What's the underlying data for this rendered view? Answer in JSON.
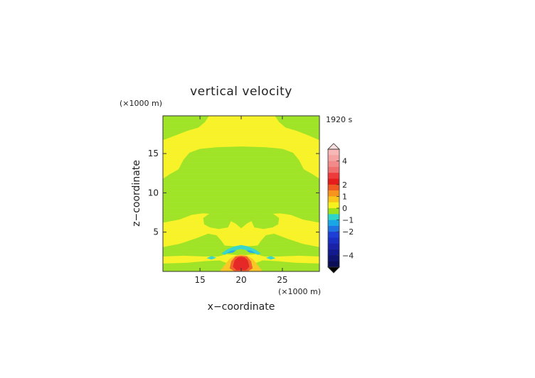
{
  "chart_data": {
    "type": "contour",
    "title": "vertical velocity",
    "time_label": "1920 s",
    "xlabel": "x−coordinate",
    "ylabel": "z−coordinate",
    "x_unit": "(×1000 m)",
    "y_unit": "(×1000 m)",
    "xlim": [
      10.5,
      29.5
    ],
    "ylim": [
      0,
      19.8
    ],
    "x_ticks": [
      15,
      20,
      25
    ],
    "y_ticks": [
      5,
      10,
      15
    ],
    "grid": false,
    "colorbar": {
      "placement": "right",
      "tick_labels": [
        {
          "value": 4,
          "text": "4"
        },
        {
          "value": 2,
          "text": "2"
        },
        {
          "value": 1,
          "text": "1"
        },
        {
          "value": 0,
          "text": "0"
        },
        {
          "value": -1,
          "text": "−1"
        },
        {
          "value": -2,
          "text": "−2"
        },
        {
          "value": -4,
          "text": "−4"
        }
      ],
      "bands": [
        {
          "low": 4.5,
          "high": 5.0,
          "color": "#f7b7b7"
        },
        {
          "low": 4.0,
          "high": 4.5,
          "color": "#f5a2a2"
        },
        {
          "low": 3.5,
          "high": 4.0,
          "color": "#f28a8a"
        },
        {
          "low": 3.0,
          "high": 3.5,
          "color": "#f07070"
        },
        {
          "low": 2.5,
          "high": 3.0,
          "color": "#ee3a3a"
        },
        {
          "low": 2.0,
          "high": 2.5,
          "color": "#e51c1c"
        },
        {
          "low": 1.5,
          "high": 2.0,
          "color": "#ef5a22"
        },
        {
          "low": 1.0,
          "high": 1.5,
          "color": "#f7941d"
        },
        {
          "low": 0.5,
          "high": 1.0,
          "color": "#f9c51a"
        },
        {
          "low": 0.0,
          "high": 0.5,
          "color": "#f7f21e"
        },
        {
          "low": -0.5,
          "high": 0.0,
          "color": "#9be21c"
        },
        {
          "low": -1.0,
          "high": -0.5,
          "color": "#2fd4c9"
        },
        {
          "low": -1.5,
          "high": -1.0,
          "color": "#1aa6e6"
        },
        {
          "low": -2.0,
          "high": -1.5,
          "color": "#1e73e0"
        },
        {
          "low": -2.5,
          "high": -2.0,
          "color": "#1e3fd6"
        },
        {
          "low": -3.0,
          "high": -2.5,
          "color": "#1a2fc2"
        },
        {
          "low": -3.5,
          "high": -3.0,
          "color": "#1a22a8"
        },
        {
          "low": -4.0,
          "high": -3.5,
          "color": "#121a8e"
        },
        {
          "low": -4.5,
          "high": -4.0,
          "color": "#0e1470"
        },
        {
          "low": -5.0,
          "high": -4.5,
          "color": "#0a0e55"
        }
      ],
      "range": [
        -5,
        5
      ],
      "over_color": "#fbe0e0",
      "under_color": "#000000"
    },
    "field": {
      "background_color": "#9be21c",
      "regions": [
        {
          "name": "upper-yellow-band",
          "color": "#f7f21e",
          "polygon": [
            [
              10.5,
              16.7
            ],
            [
              12,
              17.3
            ],
            [
              13.5,
              17.9
            ],
            [
              14.8,
              18.3
            ],
            [
              15.6,
              19.0
            ],
            [
              16.1,
              19.8
            ],
            [
              24.1,
              19.8
            ],
            [
              24.6,
              19.0
            ],
            [
              25.4,
              18.3
            ],
            [
              26.7,
              17.9
            ],
            [
              28.2,
              17.3
            ],
            [
              29.5,
              16.7
            ],
            [
              29.5,
              11.8
            ],
            [
              28.6,
              12.4
            ],
            [
              27.6,
              13.0
            ],
            [
              27.0,
              14.2
            ],
            [
              26.3,
              15.1
            ],
            [
              25.0,
              15.6
            ],
            [
              23.0,
              15.8
            ],
            [
              20.0,
              15.9
            ],
            [
              17.0,
              15.8
            ],
            [
              15.0,
              15.6
            ],
            [
              13.7,
              15.1
            ],
            [
              13.0,
              14.2
            ],
            [
              12.4,
              13.0
            ],
            [
              11.4,
              12.4
            ],
            [
              10.5,
              11.8
            ]
          ]
        },
        {
          "name": "lower-yellow-band",
          "color": "#f7f21e",
          "polygon": [
            [
              10.5,
              6.2
            ],
            [
              12.5,
              6.6
            ],
            [
              14.0,
              7.2
            ],
            [
              15.3,
              7.4
            ],
            [
              16.8,
              7.3
            ],
            [
              18.2,
              6.7
            ],
            [
              19.3,
              6.1
            ],
            [
              20.0,
              5.5
            ],
            [
              20.7,
              6.1
            ],
            [
              21.8,
              6.7
            ],
            [
              23.2,
              7.3
            ],
            [
              24.7,
              7.4
            ],
            [
              26.0,
              7.2
            ],
            [
              27.5,
              6.6
            ],
            [
              29.5,
              6.2
            ],
            [
              29.5,
              2.3
            ],
            [
              27.5,
              2.6
            ],
            [
              25.5,
              3.2
            ],
            [
              23.5,
              3.4
            ],
            [
              22.0,
              3.3
            ],
            [
              20.8,
              3.2
            ],
            [
              20.0,
              3.1
            ],
            [
              19.2,
              3.2
            ],
            [
              18.0,
              3.3
            ],
            [
              16.5,
              3.4
            ],
            [
              14.5,
              3.2
            ],
            [
              12.5,
              2.6
            ],
            [
              10.5,
              2.3
            ]
          ]
        },
        {
          "name": "left-mid-green-lobe",
          "color": "#9be21c",
          "polygon": [
            [
              15.4,
              6.8
            ],
            [
              16.2,
              7.4
            ],
            [
              17.3,
              7.6
            ],
            [
              18.4,
              7.2
            ],
            [
              18.8,
              6.5
            ],
            [
              18.4,
              5.6
            ],
            [
              17.3,
              5.4
            ],
            [
              16.2,
              5.6
            ],
            [
              15.5,
              6.0
            ]
          ]
        },
        {
          "name": "right-mid-green-lobe",
          "color": "#9be21c",
          "polygon": [
            [
              24.6,
              6.8
            ],
            [
              23.8,
              7.4
            ],
            [
              22.7,
              7.6
            ],
            [
              21.6,
              7.2
            ],
            [
              21.2,
              6.5
            ],
            [
              21.6,
              5.6
            ],
            [
              22.7,
              5.4
            ],
            [
              23.8,
              5.6
            ],
            [
              24.5,
              6.0
            ]
          ]
        },
        {
          "name": "mid-lower-green-band",
          "color": "#9be21c",
          "polygon": [
            [
              10.5,
              3.1
            ],
            [
              12.5,
              3.5
            ],
            [
              14.5,
              4.2
            ],
            [
              16.0,
              4.8
            ],
            [
              17.0,
              4.6
            ],
            [
              17.6,
              3.9
            ],
            [
              18.0,
              3.3
            ],
            [
              16.5,
              3.3
            ],
            [
              14.5,
              3.0
            ],
            [
              12.5,
              2.5
            ],
            [
              10.5,
              2.2
            ]
          ]
        },
        {
          "name": "mid-lower-green-band-right",
          "color": "#9be21c",
          "polygon": [
            [
              29.5,
              3.1
            ],
            [
              27.5,
              3.5
            ],
            [
              25.5,
              4.2
            ],
            [
              24.0,
              4.8
            ],
            [
              23.0,
              4.6
            ],
            [
              22.4,
              3.9
            ],
            [
              22.0,
              3.3
            ],
            [
              23.5,
              3.3
            ],
            [
              25.5,
              3.0
            ],
            [
              27.5,
              2.5
            ],
            [
              29.5,
              2.2
            ]
          ]
        },
        {
          "name": "bottom-yellow-band",
          "color": "#f7f21e",
          "polygon": [
            [
              10.5,
              1.9
            ],
            [
              13.0,
              2.0
            ],
            [
              15.5,
              1.9
            ],
            [
              17.2,
              1.9
            ],
            [
              18.2,
              2.2
            ],
            [
              19.3,
              2.1
            ],
            [
              20.0,
              2.0
            ],
            [
              20.7,
              2.1
            ],
            [
              21.8,
              2.2
            ],
            [
              22.8,
              1.9
            ],
            [
              24.5,
              1.9
            ],
            [
              27.0,
              2.0
            ],
            [
              29.5,
              1.9
            ],
            [
              29.5,
              1.0
            ],
            [
              26.5,
              1.1
            ],
            [
              24.5,
              1.3
            ],
            [
              22.6,
              1.4
            ],
            [
              21.6,
              1.0
            ],
            [
              20.0,
              0.2
            ],
            [
              18.4,
              1.0
            ],
            [
              17.4,
              1.4
            ],
            [
              15.5,
              1.3
            ],
            [
              13.5,
              1.1
            ],
            [
              10.5,
              1.0
            ]
          ]
        },
        {
          "name": "updraft-orange",
          "color": "#f9c51a",
          "polygon": [
            [
              17.4,
              0.0
            ],
            [
              17.9,
              0.7
            ],
            [
              18.6,
              1.6
            ],
            [
              19.3,
              2.0
            ],
            [
              20.0,
              2.2
            ],
            [
              20.7,
              2.0
            ],
            [
              21.4,
              1.6
            ],
            [
              22.1,
              0.7
            ],
            [
              22.6,
              0.0
            ]
          ]
        },
        {
          "name": "updraft-core",
          "color": "#ef5a22",
          "polygon": [
            [
              18.6,
              0.4
            ],
            [
              18.8,
              1.3
            ],
            [
              19.3,
              1.9
            ],
            [
              20.0,
              2.0
            ],
            [
              20.7,
              1.9
            ],
            [
              21.2,
              1.3
            ],
            [
              21.4,
              0.4
            ],
            [
              20.8,
              0.0
            ],
            [
              19.2,
              0.0
            ]
          ]
        },
        {
          "name": "updraft-peak",
          "color": "#e51c1c",
          "polygon": [
            [
              19.0,
              0.6
            ],
            [
              19.2,
              1.4
            ],
            [
              19.6,
              1.8
            ],
            [
              20.0,
              1.85
            ],
            [
              20.4,
              1.8
            ],
            [
              20.8,
              1.4
            ],
            [
              21.0,
              0.6
            ],
            [
              20.6,
              0.15
            ],
            [
              19.4,
              0.15
            ]
          ]
        },
        {
          "name": "downdraft-arc",
          "color": "#2fd4c9",
          "polygon": [
            [
              17.6,
              2.3
            ],
            [
              18.3,
              2.8
            ],
            [
              19.2,
              3.2
            ],
            [
              20.0,
              3.35
            ],
            [
              20.8,
              3.2
            ],
            [
              21.7,
              2.8
            ],
            [
              22.4,
              2.3
            ],
            [
              22.0,
              2.1
            ],
            [
              21.2,
              2.6
            ],
            [
              20.0,
              2.85
            ],
            [
              18.8,
              2.6
            ],
            [
              18.0,
              2.1
            ]
          ]
        },
        {
          "name": "downdraft-left-blob",
          "color": "#2fd4c9",
          "polygon": [
            [
              15.8,
              1.7
            ],
            [
              16.4,
              1.95
            ],
            [
              17.0,
              1.75
            ],
            [
              16.4,
              1.5
            ]
          ]
        },
        {
          "name": "downdraft-right-blob",
          "color": "#2fd4c9",
          "polygon": [
            [
              24.2,
              1.7
            ],
            [
              23.6,
              1.95
            ],
            [
              23.0,
              1.75
            ],
            [
              23.6,
              1.5
            ]
          ]
        },
        {
          "name": "downdraft-core-left",
          "color": "#1aa6e6",
          "polygon": [
            [
              18.2,
              2.3
            ],
            [
              18.8,
              2.65
            ],
            [
              19.4,
              2.7
            ],
            [
              19.0,
              2.4
            ]
          ]
        },
        {
          "name": "downdraft-core-right",
          "color": "#1aa6e6",
          "polygon": [
            [
              21.8,
              2.3
            ],
            [
              21.2,
              2.65
            ],
            [
              20.6,
              2.7
            ],
            [
              21.0,
              2.4
            ]
          ]
        }
      ]
    }
  }
}
